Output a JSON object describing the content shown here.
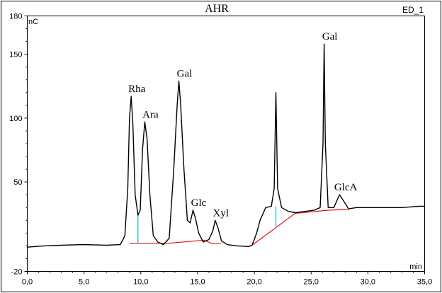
{
  "chart_data": {
    "type": "line",
    "title": "AHR",
    "trace_label": "ED_1",
    "ylabel": "nC",
    "xlabel": "min",
    "xlim": [
      0,
      35
    ],
    "ylim": [
      -20,
      180
    ],
    "x_ticks": [
      "0,0",
      "5,0",
      "10,0",
      "15,0",
      "20,0",
      "25,0",
      "30,0",
      "35,0"
    ],
    "y_ticks": [
      "-20",
      "50",
      "100",
      "150",
      "180"
    ],
    "x_tick_values": [
      0,
      5,
      10,
      15,
      20,
      25,
      30,
      35
    ],
    "y_tick_values": [
      -20,
      50,
      100,
      150,
      180
    ],
    "series": [
      {
        "values": [
          [
            0.0,
            -1.0
          ],
          [
            1.5,
            0.0
          ],
          [
            3.0,
            0.5
          ],
          [
            5.0,
            1.0
          ],
          [
            7.0,
            0.5
          ],
          [
            8.2,
            1.0
          ],
          [
            8.6,
            8.0
          ],
          [
            8.85,
            45.0
          ],
          [
            9.0,
            100.0
          ],
          [
            9.15,
            117.0
          ],
          [
            9.3,
            95.0
          ],
          [
            9.5,
            40.0
          ],
          [
            9.75,
            24.0
          ],
          [
            9.95,
            28.0
          ],
          [
            10.15,
            75.0
          ],
          [
            10.35,
            97.0
          ],
          [
            10.55,
            84.0
          ],
          [
            10.8,
            40.0
          ],
          [
            11.1,
            8.0
          ],
          [
            11.5,
            3.0
          ],
          [
            12.0,
            1.0
          ],
          [
            12.5,
            6.0
          ],
          [
            12.9,
            60.0
          ],
          [
            13.2,
            110.0
          ],
          [
            13.35,
            129.0
          ],
          [
            13.5,
            112.0
          ],
          [
            13.8,
            60.0
          ],
          [
            14.1,
            20.0
          ],
          [
            14.35,
            18.0
          ],
          [
            14.6,
            28.0
          ],
          [
            14.8,
            22.0
          ],
          [
            15.1,
            10.0
          ],
          [
            15.5,
            3.0
          ],
          [
            16.0,
            5.0
          ],
          [
            16.35,
            12.0
          ],
          [
            16.55,
            20.0
          ],
          [
            16.8,
            14.0
          ],
          [
            17.1,
            4.0
          ],
          [
            17.6,
            1.0
          ],
          [
            18.5,
            0.0
          ],
          [
            19.5,
            -0.5
          ],
          [
            19.8,
            0.5
          ],
          [
            20.2,
            10.0
          ],
          [
            20.5,
            20.0
          ],
          [
            21.0,
            30.0
          ],
          [
            21.5,
            31.0
          ],
          [
            21.75,
            45.0
          ],
          [
            21.9,
            120.0
          ],
          [
            22.05,
            45.0
          ],
          [
            22.4,
            30.0
          ],
          [
            23.0,
            27.0
          ],
          [
            23.6,
            26.0
          ],
          [
            24.5,
            27.0
          ],
          [
            25.3,
            28.0
          ],
          [
            25.8,
            30.0
          ],
          [
            26.05,
            80.0
          ],
          [
            26.15,
            158.0
          ],
          [
            26.25,
            80.0
          ],
          [
            26.5,
            30.0
          ],
          [
            27.0,
            30.0
          ],
          [
            27.5,
            40.0
          ],
          [
            27.8,
            36.0
          ],
          [
            28.3,
            29.0
          ],
          [
            29.0,
            30.0
          ],
          [
            31.0,
            30.0
          ],
          [
            33.0,
            30.0
          ],
          [
            34.5,
            31.0
          ],
          [
            35.0,
            31.0
          ]
        ]
      }
    ],
    "baselines": [
      [
        [
          9.0,
          2.0
        ],
        [
          12.4,
          2.0
        ],
        [
          15.6,
          4.5
        ],
        [
          16.2,
          2.0
        ],
        [
          17.1,
          2.0
        ]
      ],
      [
        [
          19.8,
          0.5
        ],
        [
          23.6,
          25.5
        ],
        [
          26.6,
          28.0
        ],
        [
          28.3,
          28.5
        ]
      ]
    ],
    "drop_lines": [
      {
        "x": 9.75,
        "y_top": 24.0,
        "y_bottom": 2.0
      },
      {
        "x": 21.9,
        "y_top": 31.0,
        "y_bottom": 15.0
      }
    ],
    "annotations": [
      {
        "text": "Rha",
        "x": 9.15,
        "y": 117.0
      },
      {
        "text": "Ara",
        "x": 10.35,
        "y": 97.0
      },
      {
        "text": "Gal",
        "x": 13.35,
        "y": 129.0
      },
      {
        "text": "Glc",
        "x": 14.6,
        "y": 28.0
      },
      {
        "text": "Xyl",
        "x": 16.55,
        "y": 20.0
      },
      {
        "text": "Gal",
        "x": 26.15,
        "y": 158.0
      },
      {
        "text": "GlcA",
        "x": 27.55,
        "y": 40.0
      }
    ],
    "grid": false,
    "colors": {
      "trace": "#000000",
      "baseline": "#e01010",
      "drop_line": "#00b8d0",
      "frame": "#000000"
    }
  }
}
